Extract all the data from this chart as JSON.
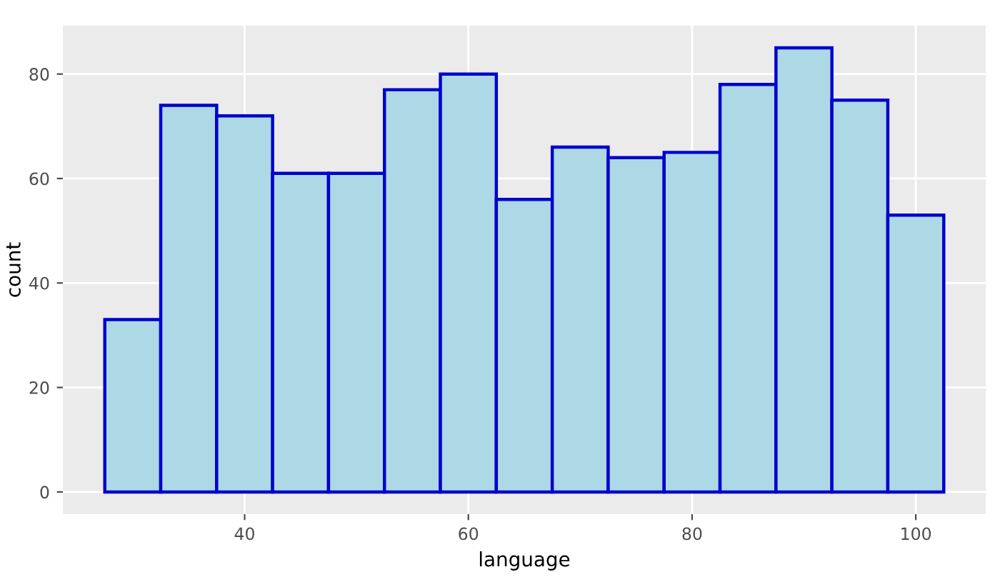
{
  "chart_data": {
    "type": "histogram",
    "xlabel": "language",
    "ylabel": "count",
    "bins": [
      27.5,
      32.5,
      37.5,
      42.5,
      47.5,
      52.5,
      57.5,
      62.5,
      67.5,
      72.5,
      77.5,
      82.5,
      87.5,
      92.5,
      97.5,
      102.5
    ],
    "values": [
      33,
      74,
      72,
      61,
      61,
      77,
      80,
      56,
      66,
      64,
      65,
      78,
      85,
      75,
      53
    ],
    "color": "#add8e6",
    "xlim": [
      23.75,
      106.25
    ],
    "xticks": [
      40,
      60,
      80,
      100
    ],
    "ylim": [
      -4.25,
      89.25
    ],
    "yticks": [
      0,
      20,
      40,
      60,
      80
    ],
    "grid": true
  }
}
